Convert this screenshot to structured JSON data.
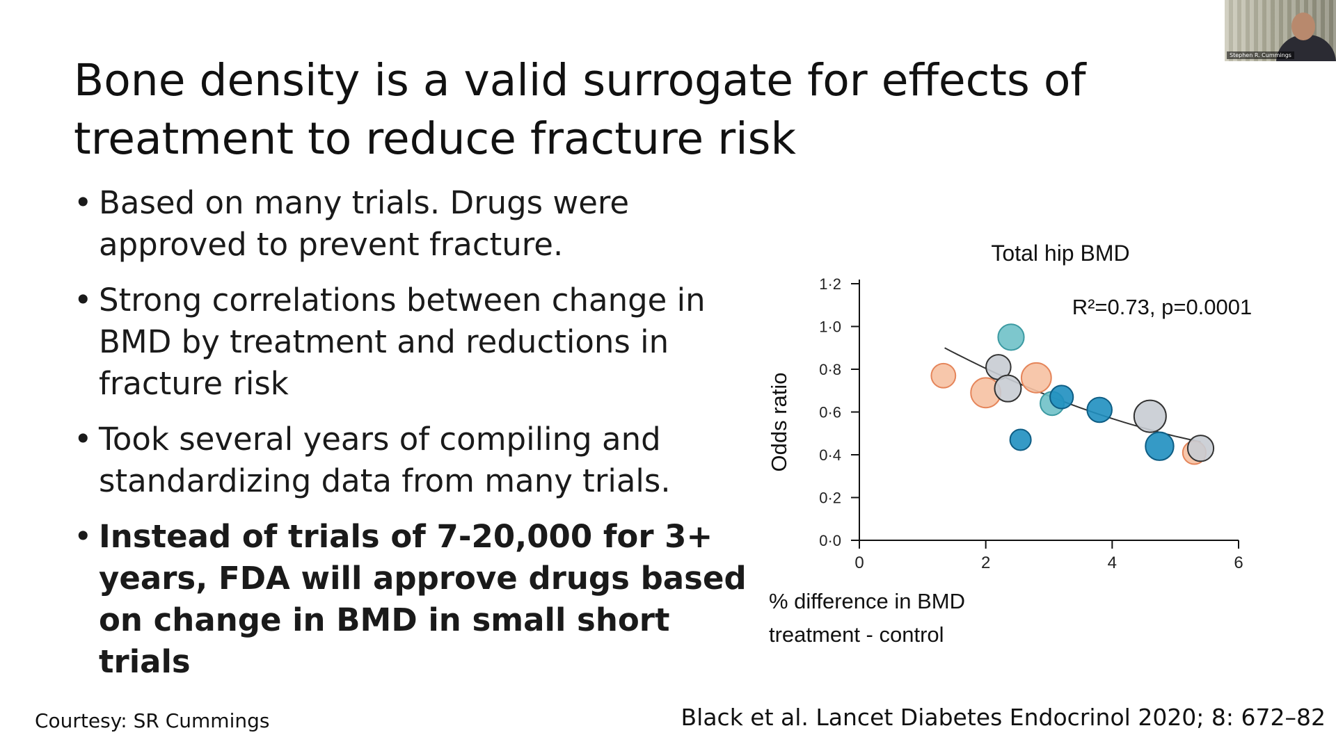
{
  "slide": {
    "title": "Bone density is a valid surrogate for effects of treatment to reduce fracture risk",
    "bullets": [
      {
        "text": "Based on many trials. Drugs were approved to prevent fracture.",
        "bold": false
      },
      {
        "text": "Strong correlations between change in BMD by treatment and reductions in fracture risk",
        "bold": false
      },
      {
        "text": "Took several years of compiling and standardizing data from many trials.",
        "bold": false
      },
      {
        "text": "Instead of trials of 7-20,000 for 3+ years, FDA will approve drugs based on change in BMD in small short trials",
        "bold": true
      }
    ],
    "bullet_glyph": "•",
    "courtesy": "Courtesy: SR Cummings",
    "citation": "Black et al. Lancet Diabetes Endocrinol 2020; 8: 672–82"
  },
  "webcam": {
    "name_tag": "Stephen R. Cummings"
  },
  "colors": {
    "text": "#111111",
    "orange_fill": "#f6c1a2",
    "orange_edge": "#e5855a",
    "blue_fill": "#1f8fc0",
    "blue_edge": "#0e5d84",
    "gray_fill": "#c8ccd3",
    "teal_fill": "#6fc1c8",
    "trend": "#333333"
  },
  "chart_data": {
    "type": "scatter",
    "title": "Total hip BMD",
    "annotation": "R²=0.73, p=0.0001",
    "xlabel_line1": "% difference in BMD",
    "xlabel_line2": "treatment - control",
    "ylabel": "Odds ratio",
    "xlim": [
      0,
      6
    ],
    "ylim": [
      0,
      1.2
    ],
    "x_ticks": [
      {
        "v": 0,
        "label": "0"
      },
      {
        "v": 2,
        "label": "2"
      },
      {
        "v": 4,
        "label": "4"
      },
      {
        "v": 6,
        "label": "6"
      }
    ],
    "y_ticks": [
      {
        "v": 0.0,
        "label": "0·0"
      },
      {
        "v": 0.2,
        "label": "0·2"
      },
      {
        "v": 0.4,
        "label": "0·4"
      },
      {
        "v": 0.6,
        "label": "0·6"
      },
      {
        "v": 0.8,
        "label": "0·8"
      },
      {
        "v": 1.0,
        "label": "1·0"
      },
      {
        "v": 1.2,
        "label": "1·2"
      }
    ],
    "points": [
      {
        "x": 1.33,
        "y": 0.77,
        "size": 0.8,
        "color": "orange"
      },
      {
        "x": 2.0,
        "y": 0.69,
        "size": 1.3,
        "color": "orange"
      },
      {
        "x": 2.2,
        "y": 0.81,
        "size": 0.85,
        "color": "gray"
      },
      {
        "x": 2.35,
        "y": 0.71,
        "size": 1.0,
        "color": "gray"
      },
      {
        "x": 2.4,
        "y": 0.95,
        "size": 0.95,
        "color": "teal"
      },
      {
        "x": 2.55,
        "y": 0.47,
        "size": 0.5,
        "color": "blue"
      },
      {
        "x": 2.8,
        "y": 0.76,
        "size": 1.3,
        "color": "orange"
      },
      {
        "x": 3.05,
        "y": 0.64,
        "size": 0.75,
        "color": "teal"
      },
      {
        "x": 3.2,
        "y": 0.67,
        "size": 0.7,
        "color": "blue"
      },
      {
        "x": 3.8,
        "y": 0.61,
        "size": 0.85,
        "color": "blue"
      },
      {
        "x": 4.6,
        "y": 0.58,
        "size": 1.5,
        "color": "gray"
      },
      {
        "x": 4.75,
        "y": 0.44,
        "size": 1.15,
        "color": "blue"
      },
      {
        "x": 5.3,
        "y": 0.41,
        "size": 0.7,
        "color": "orange"
      },
      {
        "x": 5.4,
        "y": 0.43,
        "size": 0.95,
        "color": "gray"
      }
    ],
    "trendline": {
      "x": [
        1.35,
        5.4
      ],
      "fit": "quadratic",
      "y_at": [
        [
          1.35,
          0.9
        ],
        [
          3.4,
          0.63
        ],
        [
          5.4,
          0.46
        ]
      ]
    },
    "grid": false,
    "legend": "none"
  }
}
